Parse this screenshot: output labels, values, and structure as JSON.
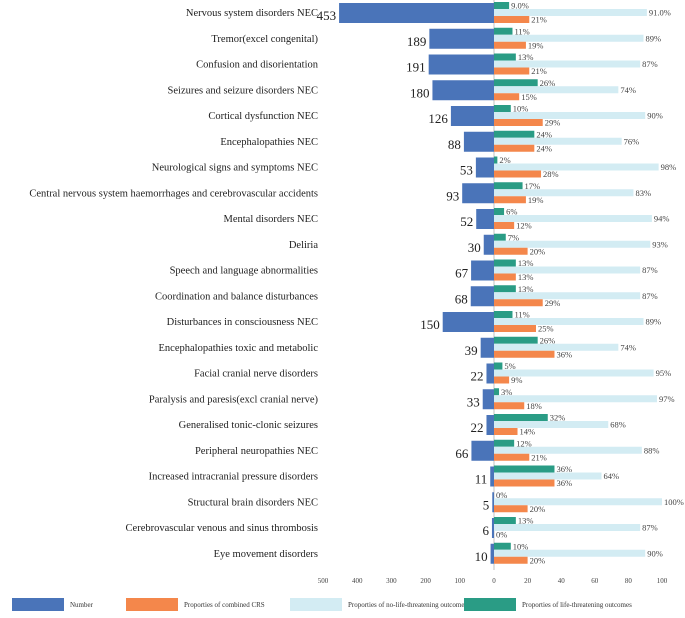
{
  "chart_data": {
    "type": "bar",
    "title": "",
    "categories": [
      "Nervous system disorders NEC",
      "Tremor(excel congenital)",
      "Confusion and disorientation",
      "Seizures and seizure disorders NEC",
      "Cortical dysfunction NEC",
      "Encephalopathies NEC",
      "Neurological signs and symptoms NEC",
      "Central nervous system haemorrhages and cerebrovascular accidents",
      "Mental disorders NEC",
      "Deliria",
      "Speech and language abnormalities",
      "Coordination and balance disturbances",
      "Disturbances in consciousness NEC",
      "Encephalopathies toxic and metabolic",
      "Facial cranial nerve disorders",
      "Paralysis and paresis(excl cranial nerve)",
      "Generalised tonic-clonic seizures",
      "Peripheral neuropathies NEC",
      "Increased intracranial pressure disorders",
      "Structural brain disorders NEC",
      "Cerebrovascular venous and sinus thrombosis",
      "Eye movement disorders"
    ],
    "number": {
      "name": "Number",
      "color": "#4a74b9",
      "values": [
        453,
        189,
        191,
        180,
        126,
        88,
        53,
        93,
        52,
        30,
        67,
        68,
        150,
        39,
        22,
        33,
        22,
        66,
        11,
        5,
        6,
        10
      ],
      "labels": [
        "453",
        "189",
        "191",
        "180",
        "126",
        "88",
        "53",
        "93",
        "52",
        "30",
        "67",
        "68",
        "150",
        "39",
        "22",
        "33",
        "22",
        "66",
        "11",
        "5",
        "6",
        "10"
      ]
    },
    "series": [
      {
        "name": "Proporties of life-threatening outcomes",
        "color": "#2a9c85",
        "values": [
          9,
          11,
          13,
          26,
          10,
          24,
          2,
          17,
          6,
          7,
          13,
          13,
          11,
          26,
          5,
          3,
          32,
          12,
          36,
          0,
          13,
          10
        ],
        "labels": [
          "9.0%",
          "11%",
          "13%",
          "26%",
          "10%",
          "24%",
          "2%",
          "17%",
          "6%",
          "7%",
          "13%",
          "13%",
          "11%",
          "26%",
          "5%",
          "3%",
          "32%",
          "12%",
          "36%",
          "0%",
          "13%",
          "10%"
        ]
      },
      {
        "name": "Proporties of no-life-threatening outcomes",
        "color": "#d3ecf3",
        "values": [
          91,
          89,
          87,
          74,
          90,
          76,
          98,
          83,
          94,
          93,
          87,
          87,
          89,
          74,
          95,
          97,
          68,
          88,
          64,
          100,
          87,
          90
        ],
        "labels": [
          "91.0%",
          "89%",
          "87%",
          "74%",
          "90%",
          "76%",
          "98%",
          "83%",
          "94%",
          "93%",
          "87%",
          "87%",
          "89%",
          "74%",
          "95%",
          "97%",
          "68%",
          "88%",
          "64%",
          "100%",
          "87%",
          "90%"
        ]
      },
      {
        "name": "Proporties of combined CRS",
        "color": "#f4874b",
        "values": [
          21,
          19,
          21,
          15,
          29,
          24,
          28,
          19,
          12,
          20,
          13,
          29,
          25,
          36,
          9,
          18,
          14,
          21,
          36,
          20,
          0,
          20
        ],
        "labels": [
          "21%",
          "19%",
          "21%",
          "15%",
          "29%",
          "24%",
          "28%",
          "19%",
          "12%",
          "20%",
          "13%",
          "29%",
          "25%",
          "36%",
          "9%",
          "18%",
          "14%",
          "21%",
          "36%",
          "20%",
          "0%",
          "20%"
        ]
      }
    ],
    "x_axis": {
      "left_range": [
        0,
        500
      ],
      "right_range": [
        0,
        100
      ],
      "left_ticks": [
        "500",
        "400",
        "300",
        "200",
        "100"
      ],
      "right_ticks": [
        "0",
        "20",
        "40",
        "60",
        "80",
        "100"
      ]
    },
    "legend": {
      "position": "bottom",
      "items": [
        {
          "label": "Number",
          "color": "#4a74b9"
        },
        {
          "label": "Proporties of combined CRS",
          "color": "#f4874b"
        },
        {
          "label": "Proporties of no-life-threatening outcomes",
          "color": "#d3ecf3"
        },
        {
          "label": "Proporties of life-threatening outcomes",
          "color": "#2a9c85"
        }
      ]
    }
  }
}
